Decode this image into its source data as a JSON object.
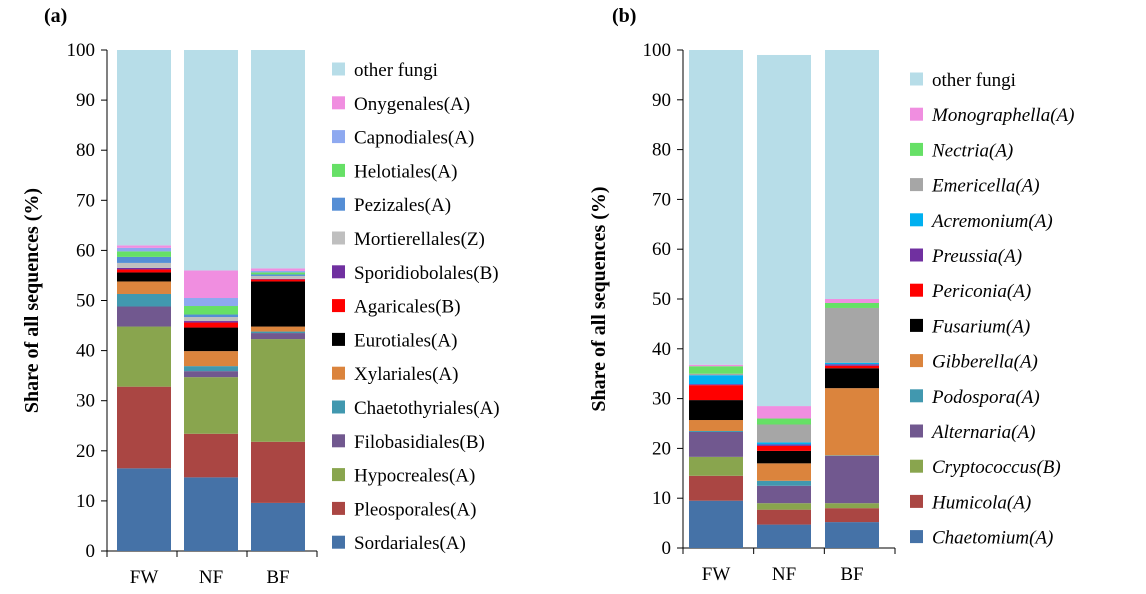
{
  "chart_data": [
    {
      "type": "bar",
      "stacked": true,
      "panel_label": "(a)",
      "ylabel": "Share of all sequences (%)",
      "xlabel": "",
      "ylim": [
        0,
        100
      ],
      "yticks": [
        0,
        10,
        20,
        30,
        40,
        50,
        60,
        70,
        80,
        90,
        100
      ],
      "categories": [
        "FW",
        "NF",
        "BF"
      ],
      "legend_position": "right",
      "legend_italic": false,
      "series": [
        {
          "name": "Sordariales(A)",
          "color": "#4572A7",
          "values": [
            16.5,
            14.7,
            9.6
          ]
        },
        {
          "name": "Pleosporales(A)",
          "color": "#AA4643",
          "values": [
            16.3,
            8.7,
            12.2
          ]
        },
        {
          "name": "Hypocreales(A)",
          "color": "#89A54E",
          "values": [
            12.0,
            11.3,
            20.5
          ]
        },
        {
          "name": "Filobasidiales(B)",
          "color": "#71588F",
          "values": [
            4.0,
            1.2,
            1.2
          ]
        },
        {
          "name": "Chaetothyriales(A)",
          "color": "#4198AF",
          "values": [
            2.5,
            1.0,
            0.3
          ]
        },
        {
          "name": "Xylariales(A)",
          "color": "#DB843D",
          "values": [
            2.5,
            3.0,
            1.0
          ]
        },
        {
          "name": "Eurotiales(A)",
          "color": "#000000",
          "values": [
            1.8,
            4.7,
            9.0
          ]
        },
        {
          "name": "Agaricales(B)",
          "color": "#FF0000",
          "values": [
            0.6,
            1.0,
            0.4
          ]
        },
        {
          "name": "Sporidiobolales(B)",
          "color": "#7030A0",
          "values": [
            0.3,
            0.3,
            0.1
          ]
        },
        {
          "name": "Mortierellales(Z)",
          "color": "#BFBFBF",
          "values": [
            1.0,
            0.8,
            0.6
          ]
        },
        {
          "name": "Pezizales(A)",
          "color": "#558ED5",
          "values": [
            1.2,
            0.5,
            0.3
          ]
        },
        {
          "name": "Helotiales(A)",
          "color": "#66E066",
          "values": [
            1.1,
            1.7,
            0.4
          ]
        },
        {
          "name": "Capnodiales(A)",
          "color": "#8EA9F0",
          "values": [
            0.7,
            1.6,
            0.3
          ]
        },
        {
          "name": "Onygenales(A)",
          "color": "#F08EE0",
          "values": [
            0.5,
            5.5,
            0.5
          ]
        },
        {
          "name": "other fungi",
          "color": "#B7DDE8",
          "values": [
            39.0,
            44.0,
            43.6
          ]
        }
      ]
    },
    {
      "type": "bar",
      "stacked": true,
      "panel_label": "(b)",
      "ylabel": "Share of all sequences (%)",
      "xlabel": "",
      "ylim": [
        0,
        100
      ],
      "yticks": [
        0,
        10,
        20,
        30,
        40,
        50,
        60,
        70,
        80,
        90,
        100
      ],
      "categories": [
        "FW",
        "NF",
        "BF"
      ],
      "legend_position": "right",
      "legend_italic": true,
      "series": [
        {
          "name": "Chaetomium(A)",
          "color": "#4572A7",
          "values": [
            9.5,
            4.7,
            5.2
          ]
        },
        {
          "name": "Humicola(A)",
          "color": "#AA4643",
          "values": [
            5.0,
            3.0,
            2.8
          ]
        },
        {
          "name": "Cryptococcus(B)",
          "color": "#89A54E",
          "values": [
            3.8,
            1.3,
            1.0
          ]
        },
        {
          "name": "Alternaria(A)",
          "color": "#71588F",
          "values": [
            5.0,
            3.5,
            9.5
          ]
        },
        {
          "name": "Podospora(A)",
          "color": "#4198AF",
          "values": [
            0.2,
            1.0,
            0.1
          ]
        },
        {
          "name": "Gibberella(A)",
          "color": "#DB843D",
          "values": [
            2.2,
            3.5,
            13.5
          ]
        },
        {
          "name": "Fusarium(A)",
          "color": "#000000",
          "values": [
            4.0,
            2.5,
            4.0
          ]
        },
        {
          "name": "Periconia(A)",
          "color": "#FF0000",
          "values": [
            3.0,
            1.0,
            0.5
          ]
        },
        {
          "name": "Preussia(A)",
          "color": "#7030A0",
          "values": [
            0.2,
            0.3,
            0.3
          ]
        },
        {
          "name": "Acremonium(A)",
          "color": "#00B0F0",
          "values": [
            1.8,
            0.4,
            0.3
          ]
        },
        {
          "name": "Emericella(A)",
          "color": "#A6A6A6",
          "values": [
            0.3,
            3.6,
            11.0
          ]
        },
        {
          "name": "Nectria(A)",
          "color": "#66E066",
          "values": [
            1.5,
            1.2,
            1.0
          ]
        },
        {
          "name": "Monographella(A)",
          "color": "#F08EE0",
          "values": [
            0.3,
            2.5,
            0.8
          ]
        },
        {
          "name": "other fungi",
          "color": "#B7DDE8",
          "values": [
            63.2,
            70.5,
            50.0
          ]
        }
      ]
    }
  ]
}
